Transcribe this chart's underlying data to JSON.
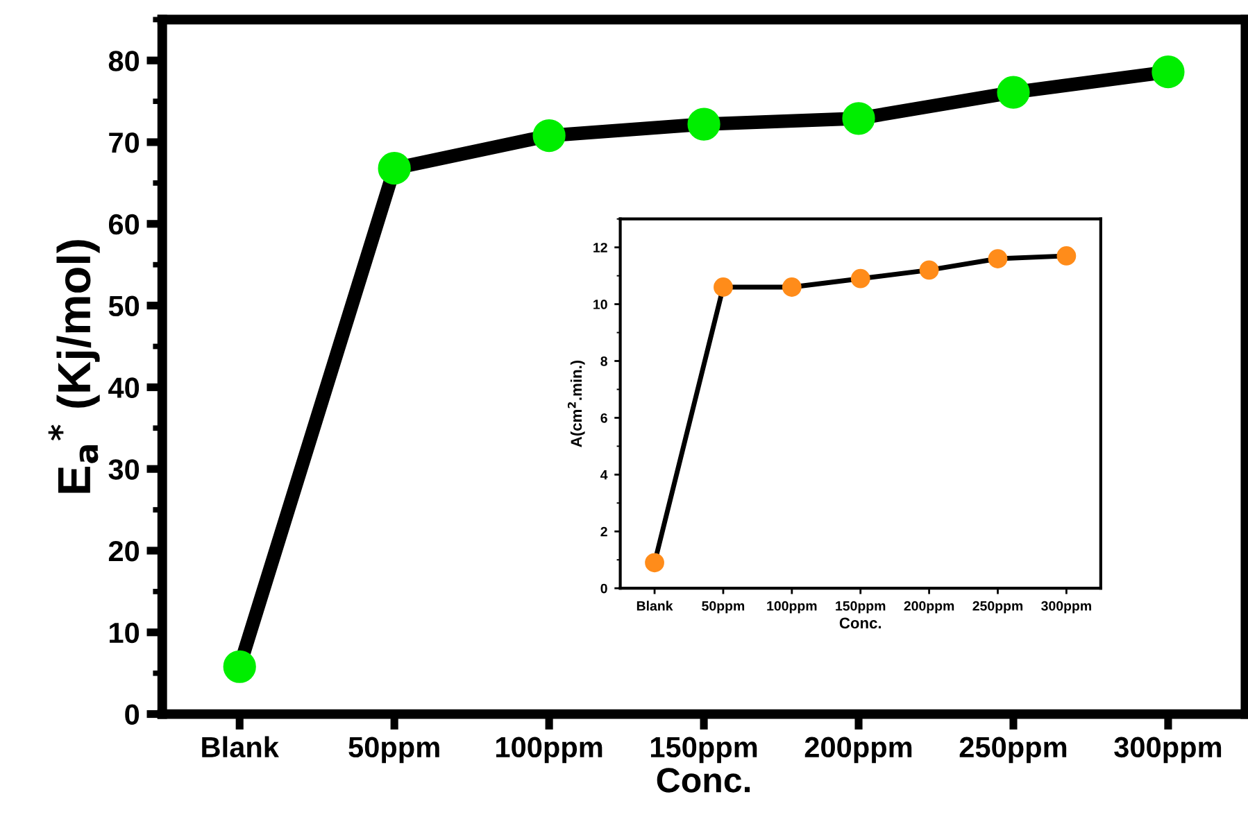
{
  "chart_data": [
    {
      "type": "line",
      "xlabel": "Conc.",
      "ylabel": "E$_{a}$$^{*}$ (Kj/mol)",
      "categories": [
        "Blank",
        "50ppm",
        "100ppm",
        "150ppm",
        "200ppm",
        "250ppm",
        "300ppm"
      ],
      "series": [
        {
          "color": "#00ee00",
          "values": [
            5.8,
            66.8,
            70.8,
            72.2,
            72.9,
            76.1,
            78.6
          ]
        }
      ],
      "ylim": [
        0,
        85
      ],
      "yticks": [
        0,
        10,
        20,
        30,
        40,
        50,
        60,
        70,
        80
      ],
      "grid": false,
      "marker": "circle",
      "line_style": "solid"
    },
    {
      "type": "line",
      "xlabel": "Conc.",
      "ylabel": "A(cm$^{2}$.min.)",
      "categories": [
        "Blank",
        "50ppm",
        "100ppm",
        "150ppm",
        "200ppm",
        "250ppm",
        "300ppm"
      ],
      "series": [
        {
          "color": "#ff8c1a",
          "values": [
            0.9,
            10.6,
            10.6,
            10.9,
            11.2,
            11.6,
            11.7
          ]
        }
      ],
      "ylim": [
        0,
        13
      ],
      "yticks": [
        0,
        2,
        4,
        6,
        8,
        10,
        12
      ],
      "grid": false,
      "marker": "circle",
      "line_style": "solid"
    }
  ]
}
